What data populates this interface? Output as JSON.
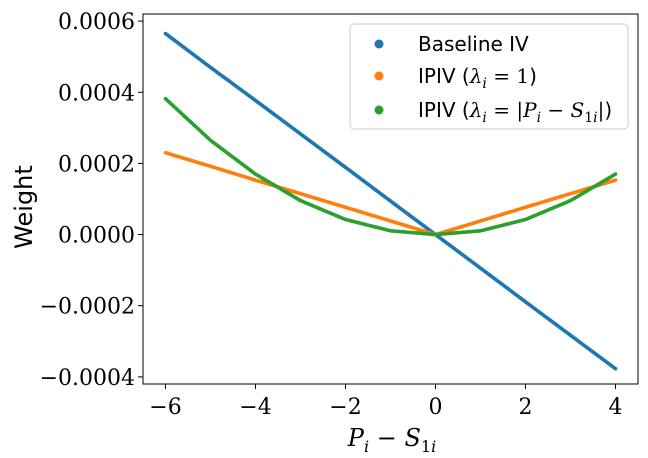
{
  "chart_data": {
    "type": "scatter",
    "title": "",
    "xlabel": "P_i − S_1i",
    "ylabel": "Weight",
    "xlim": [
      -6.5,
      4.5
    ],
    "ylim": [
      -0.00042,
      0.00062
    ],
    "xticks": [
      -6,
      -4,
      -2,
      0,
      2,
      4
    ],
    "xtick_labels": [
      "−6",
      "−4",
      "−2",
      "0",
      "2",
      "4"
    ],
    "yticks": [
      -0.0004,
      -0.0002,
      0.0,
      0.0002,
      0.0004,
      0.0006
    ],
    "ytick_labels": [
      "−0.0004",
      "−0.0002",
      "0.0000",
      "0.0002",
      "0.0004",
      "0.0006"
    ],
    "legend_position": "top-right",
    "series": [
      {
        "name": "Baseline IV",
        "color": "#1f77b4",
        "x": [
          -6,
          -5,
          -4,
          -3,
          -2,
          -1,
          0,
          1,
          2,
          3,
          4
        ],
        "y": [
          0.000565,
          0.00047,
          0.000377,
          0.000283,
          0.000189,
          9.43e-05,
          0.0,
          -9.43e-05,
          -0.000189,
          -0.000283,
          -0.000377
        ]
      },
      {
        "name": "IPIV (λi = 1)",
        "color": "#ff7f0e",
        "x": [
          -6,
          -5,
          -4,
          -3,
          -2,
          -1,
          0,
          1,
          2,
          3,
          4
        ],
        "y": [
          0.00023,
          0.000192,
          0.000153,
          0.000115,
          7.67e-05,
          3.83e-05,
          0.0,
          3.83e-05,
          7.67e-05,
          0.000115,
          0.000153
        ]
      },
      {
        "name": "IPIV (λi = |Pi − S1i|)",
        "color": "#2ca02c",
        "x": [
          -6,
          -5,
          -4,
          -3,
          -2,
          -1,
          0,
          1,
          2,
          3,
          4
        ],
        "y": [
          0.000382,
          0.000265,
          0.00017,
          9.55e-05,
          4.24e-05,
          1.06e-05,
          0.0,
          1.06e-05,
          4.24e-05,
          9.55e-05,
          0.00017
        ]
      }
    ]
  }
}
